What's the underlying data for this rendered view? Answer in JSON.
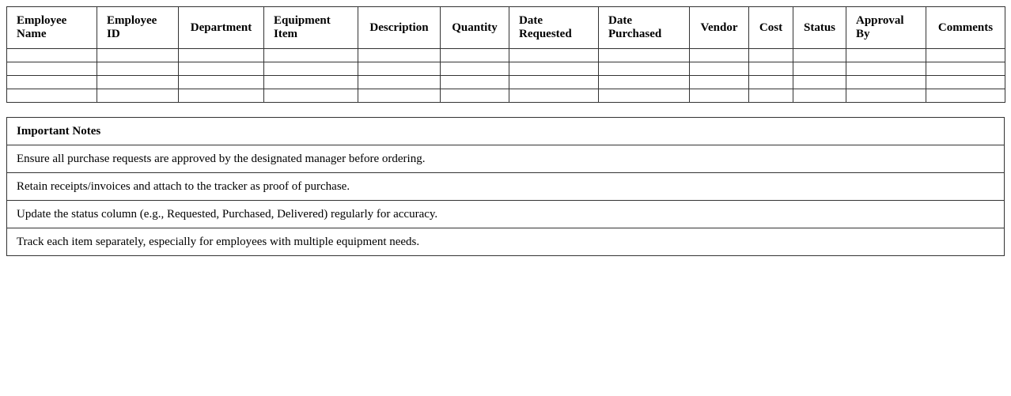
{
  "tracker": {
    "headers": [
      "Employee Name",
      "Employee ID",
      "Department",
      "Equipment Item",
      "Description",
      "Quantity",
      "Date Requested",
      "Date Purchased",
      "Vendor",
      "Cost",
      "Status",
      "Approval By",
      "Comments"
    ],
    "empty_rows": 4
  },
  "notes": {
    "title": "Important Notes",
    "items": [
      "Ensure all purchase requests are approved by the designated manager before ordering.",
      "Retain receipts/invoices and attach to the tracker as proof of purchase.",
      "Update the status column (e.g., Requested, Purchased, Delivered) regularly for accuracy.",
      "Track each item separately, especially for employees with multiple equipment needs."
    ]
  }
}
